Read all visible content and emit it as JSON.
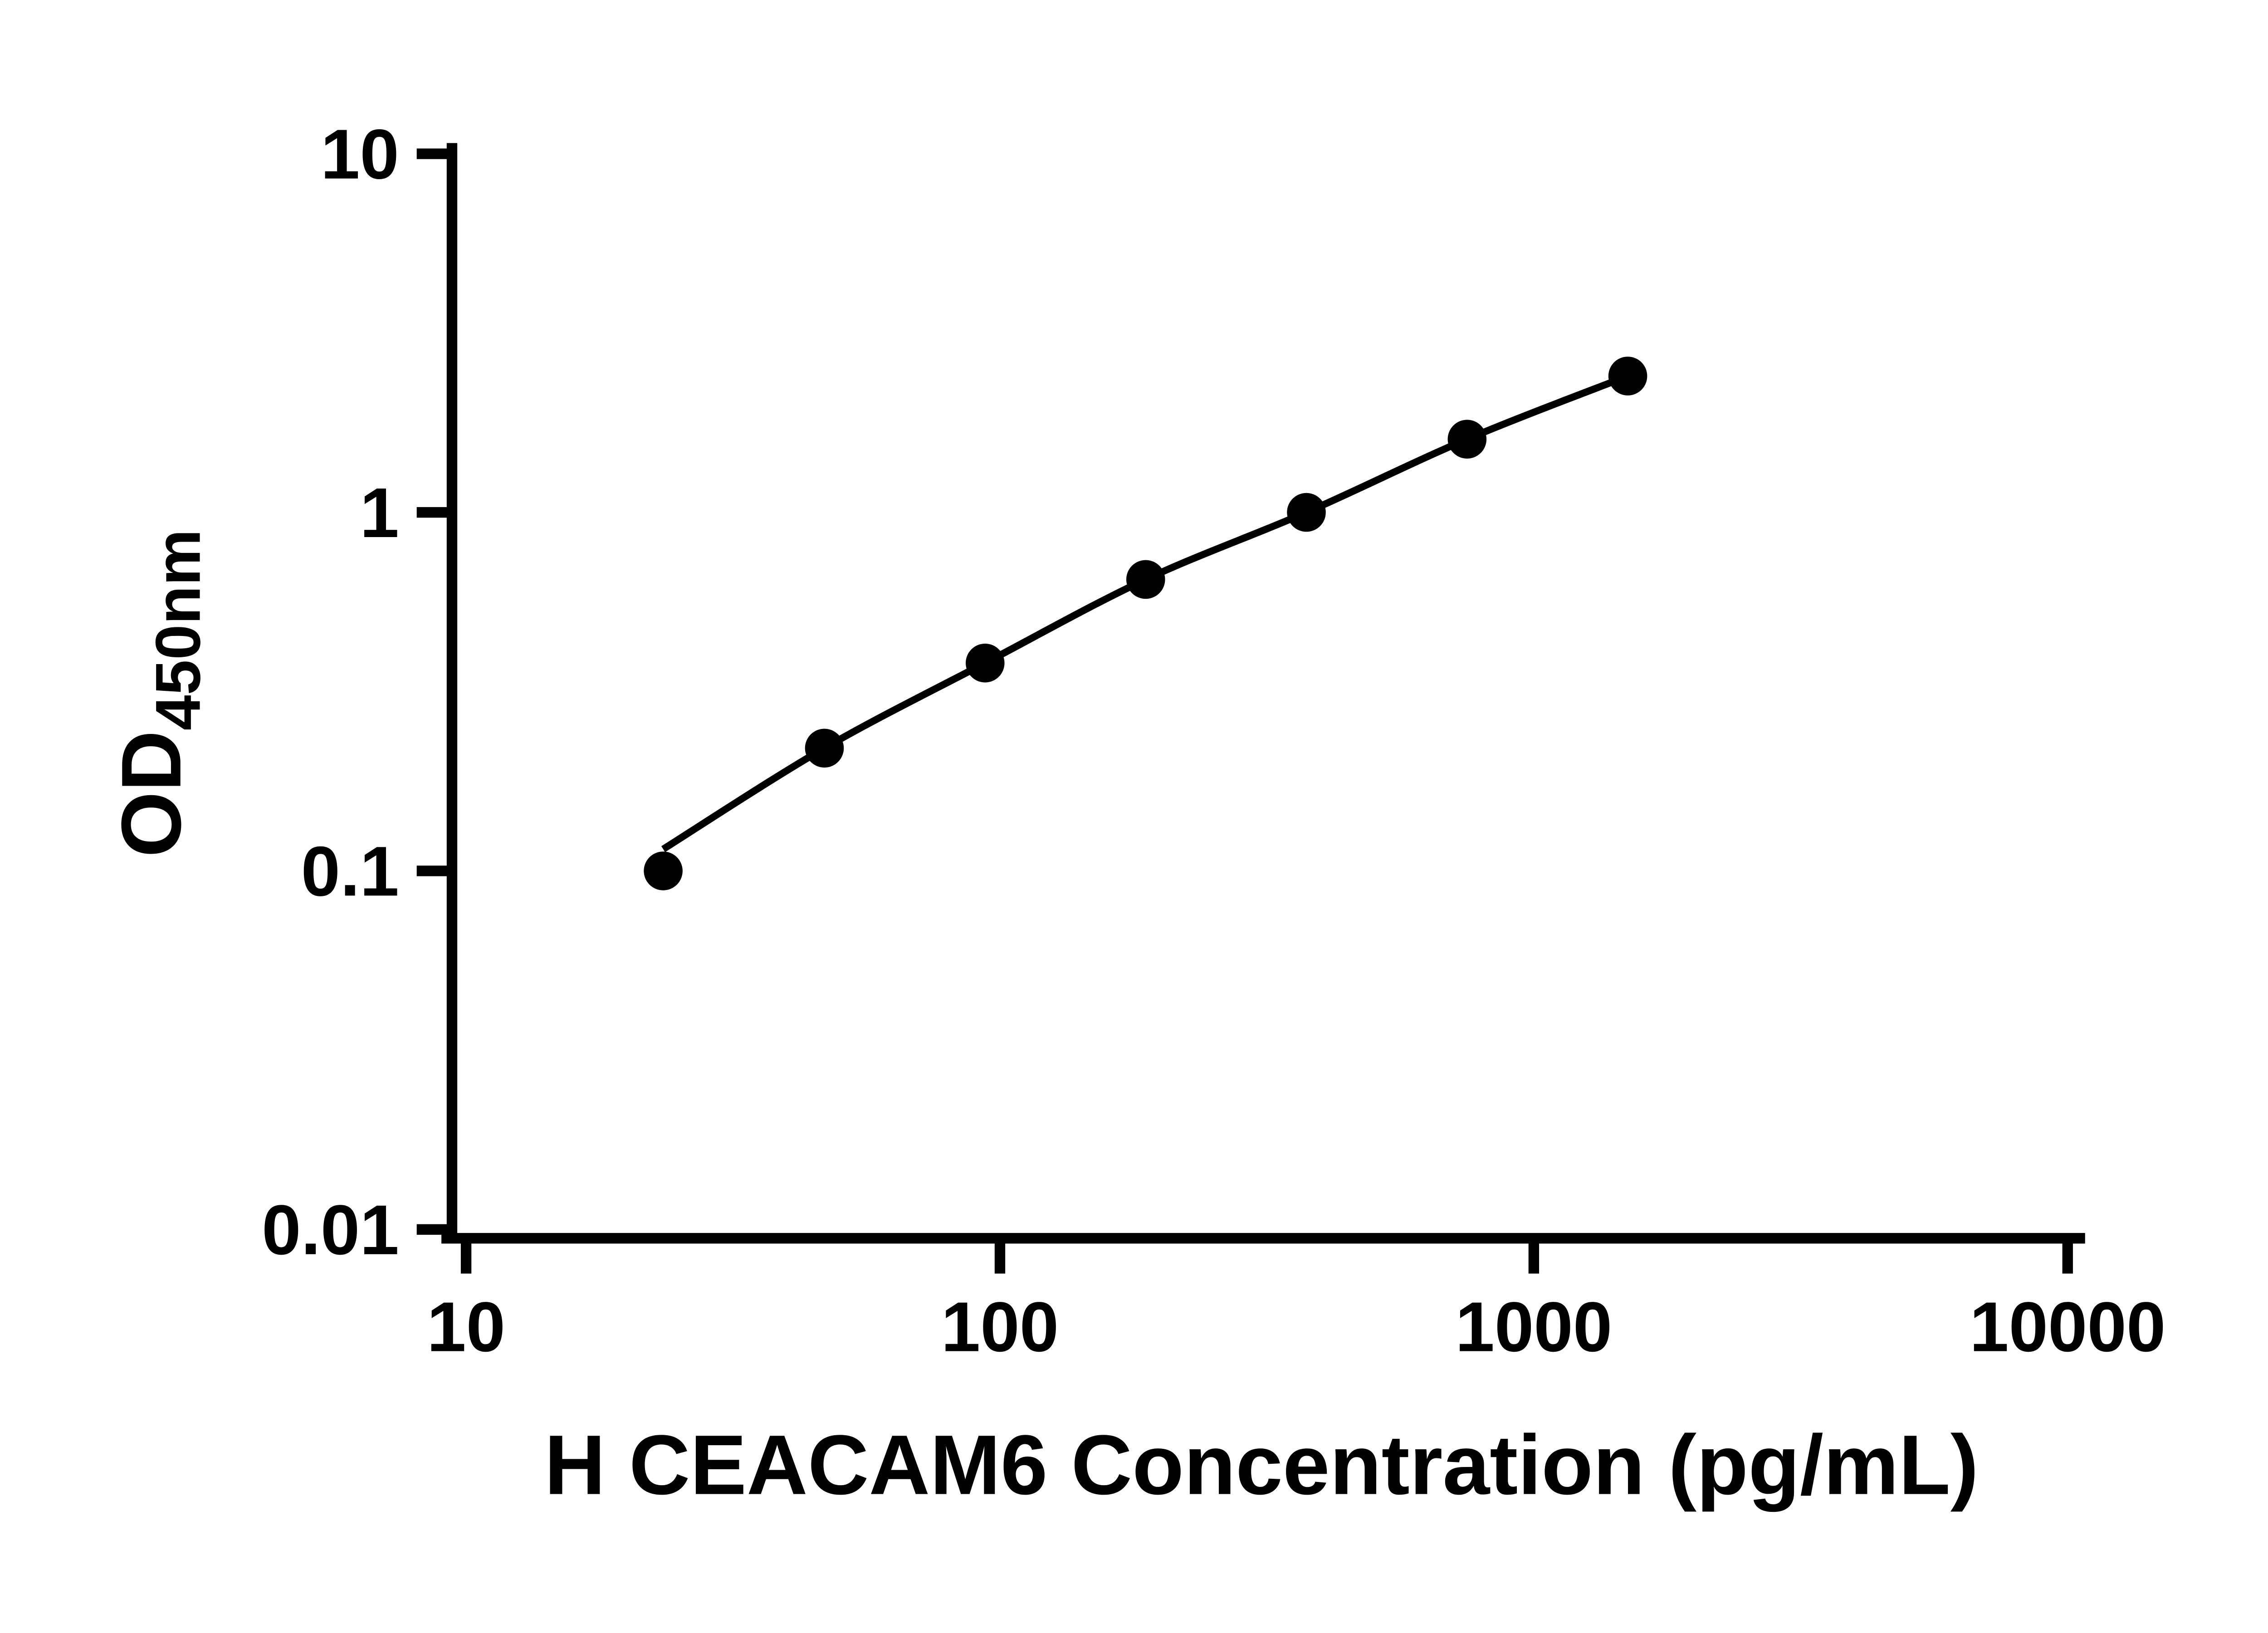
{
  "chart_data": {
    "type": "scatter",
    "title": "",
    "xlabel": "H CEACAM6 Concentration (pg/mL)",
    "ylabel": "OD",
    "ylabel_subscript": "450nm",
    "x_scale": "log",
    "y_scale": "log",
    "xlim": [
      10,
      10000
    ],
    "ylim": [
      0.01,
      10
    ],
    "x_ticks": [
      10,
      100,
      1000,
      10000
    ],
    "x_tick_labels": [
      "10",
      "100",
      "1000",
      "10000"
    ],
    "y_ticks": [
      0.01,
      0.1,
      1,
      10
    ],
    "y_tick_labels": [
      "0.01",
      "0.1",
      "1",
      "10"
    ],
    "grid": false,
    "legend": "none",
    "ink_color": "#000000",
    "background_color": "#ffffff",
    "series": [
      {
        "name": "standard-curve-points",
        "marker": "circle",
        "color": "#000000",
        "points": [
          {
            "x": 23.4,
            "y": 0.1
          },
          {
            "x": 46.9,
            "y": 0.22
          },
          {
            "x": 93.8,
            "y": 0.38
          },
          {
            "x": 187.5,
            "y": 0.65
          },
          {
            "x": 375,
            "y": 1.0
          },
          {
            "x": 750,
            "y": 1.6
          },
          {
            "x": 1500,
            "y": 2.4
          }
        ]
      }
    ],
    "trend": {
      "name": "fit-line",
      "type": "smooth",
      "color": "#000000",
      "points": [
        {
          "x": 23.4,
          "y": 0.115
        },
        {
          "x": 46.9,
          "y": 0.22
        },
        {
          "x": 93.8,
          "y": 0.38
        },
        {
          "x": 187.5,
          "y": 0.65
        },
        {
          "x": 375,
          "y": 1.0
        },
        {
          "x": 750,
          "y": 1.6
        },
        {
          "x": 1500,
          "y": 2.4
        }
      ]
    }
  }
}
